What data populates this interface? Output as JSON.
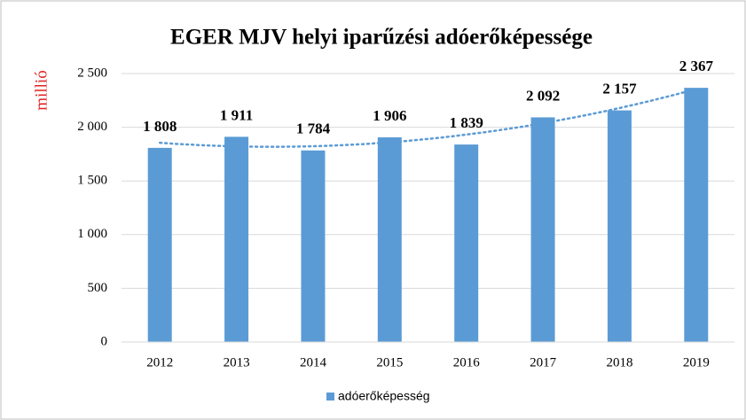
{
  "chart_data": {
    "type": "bar",
    "title": "EGER MJV helyi iparűzési adóerőképessége",
    "ylabel": "millió",
    "categories": [
      "2012",
      "2013",
      "2014",
      "2015",
      "2016",
      "2017",
      "2018",
      "2019"
    ],
    "series": [
      {
        "name": "adóerőképesség",
        "color": "#5b9bd5",
        "values": [
          1808,
          1911,
          1784,
          1906,
          1839,
          2092,
          2157,
          2367
        ],
        "value_labels": [
          "1 808",
          "1 911",
          "1 784",
          "1 906",
          "1 839",
          "2 092",
          "2 157",
          "2 367"
        ]
      }
    ],
    "ylim": [
      0,
      2500
    ],
    "yticks": [
      0,
      500,
      {
        "value": 1000,
        "label": "1 000"
      },
      {
        "value": 1500,
        "label": "1 500"
      },
      {
        "value": 2000,
        "label": "2 000"
      },
      {
        "value": 2500,
        "label": "2 500"
      }
    ],
    "grid": true,
    "trendline": "polynomial",
    "legend": "bottom"
  }
}
